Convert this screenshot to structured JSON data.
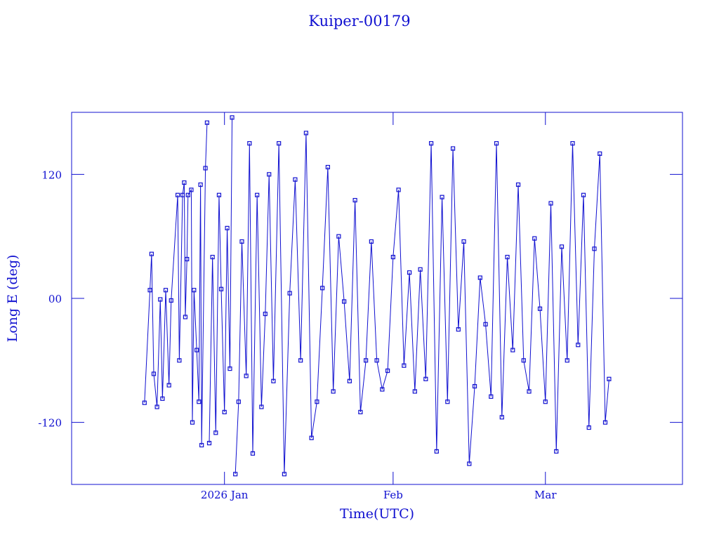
{
  "chart_data": {
    "type": "scatter-line",
    "title": "Kuiper-00179",
    "x_label": "Time(UTC)",
    "y_label": "Long E (deg)",
    "color": "#1010d0",
    "xlim": [
      -28.1,
      84.2
    ],
    "ylim": [
      -180,
      180
    ],
    "xticks": [
      {
        "value": 0,
        "label": "2026 Jan"
      },
      {
        "value": 31,
        "label": "Feb"
      },
      {
        "value": 59,
        "label": "Mar"
      }
    ],
    "yticks": [
      {
        "value": -120,
        "label": "-120"
      },
      {
        "value": 0,
        "label": "00"
      },
      {
        "value": 120,
        "label": "120"
      }
    ],
    "x": [
      -14.7,
      -13.7,
      -13.4,
      -13.0,
      -12.4,
      -11.8,
      -11.4,
      -10.8,
      -10.2,
      -9.8,
      -8.6,
      -8.3,
      -7.7,
      -7.4,
      -7.2,
      -6.9,
      -6.7,
      -6.1,
      -5.9,
      -5.6,
      -5.1,
      -4.7,
      -4.4,
      -4.2,
      -3.5,
      -3.2,
      null,
      -2.8,
      -2.2,
      -1.6,
      -1.0,
      -0.6,
      0,
      0.5,
      1.0,
      1.4,
      null,
      2.0,
      2.6,
      3.2,
      4.0,
      4.6,
      5.2,
      6.0,
      6.8,
      7.5,
      8.2,
      9.0,
      10,
      11,
      12,
      13,
      14,
      15,
      16,
      17,
      18,
      19,
      20,
      21,
      22,
      23,
      24,
      25,
      26,
      27,
      28,
      29,
      30,
      31,
      32,
      33,
      34,
      35,
      36,
      37,
      38,
      39,
      40,
      41,
      42,
      43,
      44,
      45,
      46,
      47,
      48,
      49,
      50,
      51,
      52,
      53,
      54,
      55,
      56,
      57,
      58,
      59,
      60,
      61,
      62,
      63,
      64,
      65,
      66,
      67,
      68,
      69,
      70,
      70.7
    ],
    "values": [
      -101,
      8,
      43,
      -73,
      -105,
      -1,
      -97,
      8,
      -84,
      -2,
      100,
      -60,
      100,
      112,
      -18,
      38,
      100,
      105,
      -120,
      8,
      -50,
      -100,
      110,
      -142,
      126,
      170,
      null,
      -140,
      40,
      -130,
      100,
      9,
      -110,
      68,
      -68,
      175,
      null,
      -170,
      -100,
      55,
      -75,
      150,
      -150,
      100,
      -105,
      -15,
      120,
      -80,
      150,
      -170,
      5,
      115,
      -60,
      160,
      -135,
      -100,
      10,
      127,
      -90,
      60,
      -3,
      -80,
      95,
      -110,
      -60,
      55,
      -60,
      -88,
      -70,
      40,
      105,
      -65,
      25,
      -90,
      28,
      -78,
      150,
      -148,
      98,
      -100,
      145,
      -30,
      55,
      -160,
      -85,
      20,
      -25,
      -95,
      150,
      -115,
      40,
      -50,
      110,
      -60,
      -90,
      58,
      -10,
      -100,
      92,
      -148,
      50,
      -60,
      150,
      -45,
      100,
      -125,
      48,
      140,
      -120,
      -78
    ]
  }
}
